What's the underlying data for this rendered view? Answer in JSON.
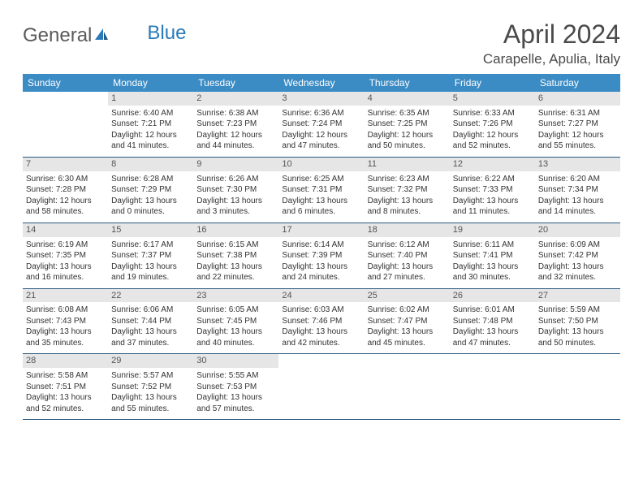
{
  "logo": {
    "text1": "General",
    "text2": "Blue"
  },
  "title": "April 2024",
  "location": "Carapelle, Apulia, Italy",
  "colors": {
    "header_bg": "#3b8bc4",
    "header_text": "#ffffff",
    "daynum_bg": "#e6e6e6",
    "daynum_text": "#555555",
    "rule": "#2a5a80",
    "logo_gray": "#5a5a5a",
    "logo_blue": "#2a7ab8"
  },
  "weekdays": [
    "Sunday",
    "Monday",
    "Tuesday",
    "Wednesday",
    "Thursday",
    "Friday",
    "Saturday"
  ],
  "weeks": [
    [
      {
        "n": "",
        "sr": "",
        "ss": "",
        "dl": ""
      },
      {
        "n": "1",
        "sr": "Sunrise: 6:40 AM",
        "ss": "Sunset: 7:21 PM",
        "dl": "Daylight: 12 hours and 41 minutes."
      },
      {
        "n": "2",
        "sr": "Sunrise: 6:38 AM",
        "ss": "Sunset: 7:23 PM",
        "dl": "Daylight: 12 hours and 44 minutes."
      },
      {
        "n": "3",
        "sr": "Sunrise: 6:36 AM",
        "ss": "Sunset: 7:24 PM",
        "dl": "Daylight: 12 hours and 47 minutes."
      },
      {
        "n": "4",
        "sr": "Sunrise: 6:35 AM",
        "ss": "Sunset: 7:25 PM",
        "dl": "Daylight: 12 hours and 50 minutes."
      },
      {
        "n": "5",
        "sr": "Sunrise: 6:33 AM",
        "ss": "Sunset: 7:26 PM",
        "dl": "Daylight: 12 hours and 52 minutes."
      },
      {
        "n": "6",
        "sr": "Sunrise: 6:31 AM",
        "ss": "Sunset: 7:27 PM",
        "dl": "Daylight: 12 hours and 55 minutes."
      }
    ],
    [
      {
        "n": "7",
        "sr": "Sunrise: 6:30 AM",
        "ss": "Sunset: 7:28 PM",
        "dl": "Daylight: 12 hours and 58 minutes."
      },
      {
        "n": "8",
        "sr": "Sunrise: 6:28 AM",
        "ss": "Sunset: 7:29 PM",
        "dl": "Daylight: 13 hours and 0 minutes."
      },
      {
        "n": "9",
        "sr": "Sunrise: 6:26 AM",
        "ss": "Sunset: 7:30 PM",
        "dl": "Daylight: 13 hours and 3 minutes."
      },
      {
        "n": "10",
        "sr": "Sunrise: 6:25 AM",
        "ss": "Sunset: 7:31 PM",
        "dl": "Daylight: 13 hours and 6 minutes."
      },
      {
        "n": "11",
        "sr": "Sunrise: 6:23 AM",
        "ss": "Sunset: 7:32 PM",
        "dl": "Daylight: 13 hours and 8 minutes."
      },
      {
        "n": "12",
        "sr": "Sunrise: 6:22 AM",
        "ss": "Sunset: 7:33 PM",
        "dl": "Daylight: 13 hours and 11 minutes."
      },
      {
        "n": "13",
        "sr": "Sunrise: 6:20 AM",
        "ss": "Sunset: 7:34 PM",
        "dl": "Daylight: 13 hours and 14 minutes."
      }
    ],
    [
      {
        "n": "14",
        "sr": "Sunrise: 6:19 AM",
        "ss": "Sunset: 7:35 PM",
        "dl": "Daylight: 13 hours and 16 minutes."
      },
      {
        "n": "15",
        "sr": "Sunrise: 6:17 AM",
        "ss": "Sunset: 7:37 PM",
        "dl": "Daylight: 13 hours and 19 minutes."
      },
      {
        "n": "16",
        "sr": "Sunrise: 6:15 AM",
        "ss": "Sunset: 7:38 PM",
        "dl": "Daylight: 13 hours and 22 minutes."
      },
      {
        "n": "17",
        "sr": "Sunrise: 6:14 AM",
        "ss": "Sunset: 7:39 PM",
        "dl": "Daylight: 13 hours and 24 minutes."
      },
      {
        "n": "18",
        "sr": "Sunrise: 6:12 AM",
        "ss": "Sunset: 7:40 PM",
        "dl": "Daylight: 13 hours and 27 minutes."
      },
      {
        "n": "19",
        "sr": "Sunrise: 6:11 AM",
        "ss": "Sunset: 7:41 PM",
        "dl": "Daylight: 13 hours and 30 minutes."
      },
      {
        "n": "20",
        "sr": "Sunrise: 6:09 AM",
        "ss": "Sunset: 7:42 PM",
        "dl": "Daylight: 13 hours and 32 minutes."
      }
    ],
    [
      {
        "n": "21",
        "sr": "Sunrise: 6:08 AM",
        "ss": "Sunset: 7:43 PM",
        "dl": "Daylight: 13 hours and 35 minutes."
      },
      {
        "n": "22",
        "sr": "Sunrise: 6:06 AM",
        "ss": "Sunset: 7:44 PM",
        "dl": "Daylight: 13 hours and 37 minutes."
      },
      {
        "n": "23",
        "sr": "Sunrise: 6:05 AM",
        "ss": "Sunset: 7:45 PM",
        "dl": "Daylight: 13 hours and 40 minutes."
      },
      {
        "n": "24",
        "sr": "Sunrise: 6:03 AM",
        "ss": "Sunset: 7:46 PM",
        "dl": "Daylight: 13 hours and 42 minutes."
      },
      {
        "n": "25",
        "sr": "Sunrise: 6:02 AM",
        "ss": "Sunset: 7:47 PM",
        "dl": "Daylight: 13 hours and 45 minutes."
      },
      {
        "n": "26",
        "sr": "Sunrise: 6:01 AM",
        "ss": "Sunset: 7:48 PM",
        "dl": "Daylight: 13 hours and 47 minutes."
      },
      {
        "n": "27",
        "sr": "Sunrise: 5:59 AM",
        "ss": "Sunset: 7:50 PM",
        "dl": "Daylight: 13 hours and 50 minutes."
      }
    ],
    [
      {
        "n": "28",
        "sr": "Sunrise: 5:58 AM",
        "ss": "Sunset: 7:51 PM",
        "dl": "Daylight: 13 hours and 52 minutes."
      },
      {
        "n": "29",
        "sr": "Sunrise: 5:57 AM",
        "ss": "Sunset: 7:52 PM",
        "dl": "Daylight: 13 hours and 55 minutes."
      },
      {
        "n": "30",
        "sr": "Sunrise: 5:55 AM",
        "ss": "Sunset: 7:53 PM",
        "dl": "Daylight: 13 hours and 57 minutes."
      },
      {
        "n": "",
        "sr": "",
        "ss": "",
        "dl": ""
      },
      {
        "n": "",
        "sr": "",
        "ss": "",
        "dl": ""
      },
      {
        "n": "",
        "sr": "",
        "ss": "",
        "dl": ""
      },
      {
        "n": "",
        "sr": "",
        "ss": "",
        "dl": ""
      }
    ]
  ]
}
